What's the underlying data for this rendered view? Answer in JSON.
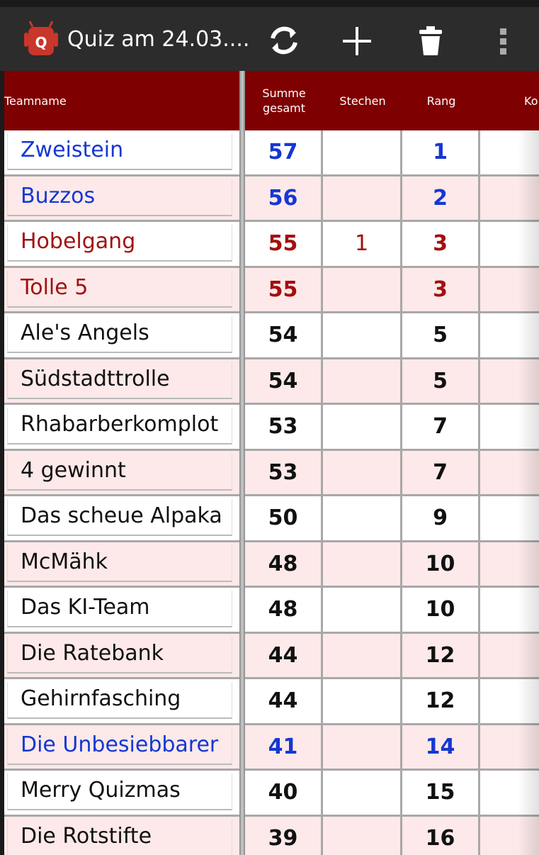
{
  "app_bar": {
    "title": "Quiz am 24.03...."
  },
  "table": {
    "columns": [
      "Teamname",
      "Summe gesamt",
      "Stechen",
      "Rang",
      "Ko"
    ],
    "rows": [
      {
        "name": "Zweistein",
        "sum": 57,
        "rank": 1,
        "color": "#1537d4"
      },
      {
        "name": "Buzzos",
        "sum": 56,
        "rank": 2,
        "color": "#1537d4"
      },
      {
        "name": "Hobelgang",
        "sum": 55,
        "tiebreak": 1,
        "rank": 3,
        "color": "#a30f0f"
      },
      {
        "name": "Tolle 5",
        "sum": 55,
        "rank": 3,
        "color": "#a30f0f"
      },
      {
        "name": "Ale's Angels",
        "sum": 54,
        "rank": 5,
        "color": "#111111"
      },
      {
        "name": "Südstadttrolle",
        "sum": 54,
        "rank": 5,
        "color": "#111111"
      },
      {
        "name": "Rhabarberkomplot",
        "sum": 53,
        "rank": 7,
        "color": "#111111"
      },
      {
        "name": "4 gewinnt",
        "sum": 53,
        "rank": 7,
        "color": "#111111"
      },
      {
        "name": "Das scheue Alpaka",
        "sum": 50,
        "rank": 9,
        "color": "#111111"
      },
      {
        "name": "McMähk",
        "sum": 48,
        "rank": 10,
        "color": "#111111"
      },
      {
        "name": "Das KI-Team",
        "sum": 48,
        "rank": 10,
        "color": "#111111"
      },
      {
        "name": "Die Ratebank",
        "sum": 44,
        "rank": 12,
        "color": "#111111"
      },
      {
        "name": "Gehirnfasching",
        "sum": 44,
        "rank": 12,
        "color": "#111111"
      },
      {
        "name": "Die Unbesiebbarer",
        "sum": 41,
        "rank": 14,
        "color": "#1537d4"
      },
      {
        "name": "Merry Quizmas",
        "sum": 40,
        "rank": 15,
        "color": "#111111"
      },
      {
        "name": "Die Rotstifte",
        "sum": 39,
        "rank": 16,
        "color": "#111111"
      }
    ]
  }
}
